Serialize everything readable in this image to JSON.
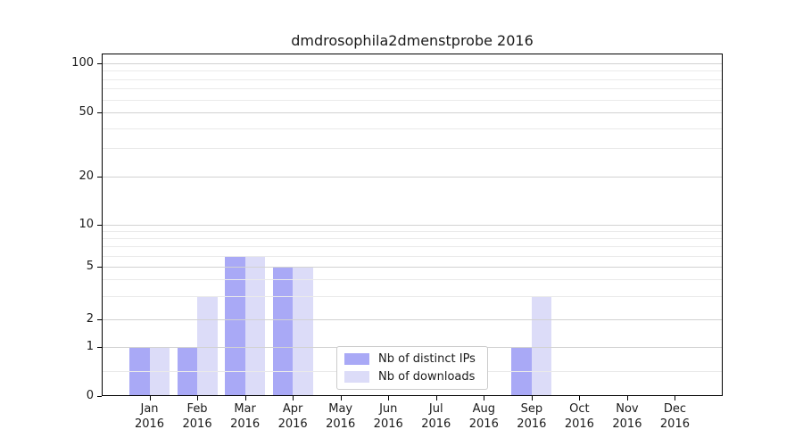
{
  "title": "dmdrosophila2dmenstprobe 2016",
  "chart_data": {
    "type": "bar",
    "title": "dmdrosophila2dmenstprobe 2016",
    "categories": [
      "Jan 2016",
      "Feb 2016",
      "Mar 2016",
      "Apr 2016",
      "May 2016",
      "Jun 2016",
      "Jul 2016",
      "Aug 2016",
      "Sep 2016",
      "Oct 2016",
      "Nov 2016",
      "Dec 2016"
    ],
    "series": [
      {
        "name": "Nb of distinct IPs",
        "color": "#a9a9f6",
        "values": [
          1,
          1,
          6,
          5,
          0,
          0,
          0,
          0,
          1,
          0,
          0,
          0
        ]
      },
      {
        "name": "Nb of downloads",
        "color": "#dcdcf8",
        "values": [
          1,
          3,
          6,
          5,
          0,
          0,
          0,
          0,
          3,
          0,
          0,
          0
        ]
      }
    ],
    "xlabel": "",
    "ylabel": "",
    "y_axis": {
      "scale": "log-like (linear below 1)",
      "major_ticks": [
        0,
        1,
        2,
        5,
        10,
        20,
        50,
        100
      ],
      "minor_ticks": [
        0.5,
        3,
        4,
        6,
        7,
        8,
        9,
        30,
        40,
        60,
        70,
        80,
        90
      ],
      "ylim": [
        0,
        115
      ]
    },
    "grid": "horizontal, drawn above bars",
    "legend_position": "lower center"
  },
  "legend": {
    "items": [
      {
        "label": "Nb of distinct IPs",
        "color": "#a9a9f6"
      },
      {
        "label": "Nb of downloads",
        "color": "#dcdcf8"
      }
    ]
  },
  "colors": {
    "background": "#ffffff",
    "bar_distinct_ips": "#a9a9f6",
    "bar_downloads": "#dcdcf8",
    "grid_major": "#d2d2d2",
    "grid_minor": "#eaeaea",
    "spine": "#000000",
    "legend_border": "#cccccc",
    "text": "#1a1a1a"
  }
}
